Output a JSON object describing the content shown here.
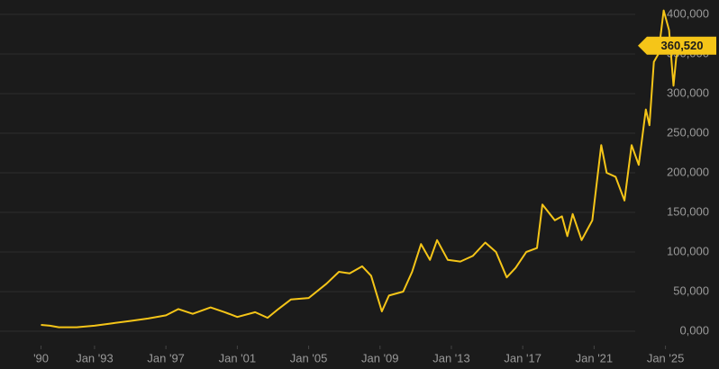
{
  "chart_data": {
    "type": "line",
    "color": "#f5c518",
    "grid": true,
    "xlim": [
      1987.7,
      2028
    ],
    "ylim": [
      -47700,
      418200
    ],
    "xticks": [
      {
        "value": 1990,
        "label": "'90"
      },
      {
        "value": 1993,
        "label": "Jan '93"
      },
      {
        "value": 1997,
        "label": "Jan '97"
      },
      {
        "value": 2001,
        "label": "Jan '01"
      },
      {
        "value": 2005,
        "label": "Jan '05"
      },
      {
        "value": 2009,
        "label": "Jan '09"
      },
      {
        "value": 2013,
        "label": "Jan '13"
      },
      {
        "value": 2017,
        "label": "Jan '17"
      },
      {
        "value": 2021,
        "label": "Jan '21"
      },
      {
        "value": 2025,
        "label": "Jan '25"
      }
    ],
    "yticks": [
      {
        "value": 0,
        "label": "0,000"
      },
      {
        "value": 50000,
        "label": "50,000"
      },
      {
        "value": 100000,
        "label": "100,000"
      },
      {
        "value": 150000,
        "label": "150,000"
      },
      {
        "value": 200000,
        "label": "200,000"
      },
      {
        "value": 250000,
        "label": "250,000"
      },
      {
        "value": 300000,
        "label": "300,000"
      },
      {
        "value": 350000,
        "label": "350,000"
      },
      {
        "value": 400000,
        "label": "400,000"
      }
    ],
    "x": [
      1990.0,
      1990.5,
      1991,
      1992,
      1993,
      1994,
      1995,
      1996,
      1997,
      1997.7,
      1998.5,
      1999.5,
      2000.3,
      2001,
      2002,
      2002.7,
      2003.3,
      2004,
      2005,
      2006,
      2006.7,
      2007.3,
      2008,
      2008.5,
      2009.1,
      2009.5,
      2010.3,
      2010.8,
      2011.3,
      2011.8,
      2012.2,
      2012.8,
      2013.5,
      2014.2,
      2014.9,
      2015.5,
      2016.1,
      2016.6,
      2017.2,
      2017.8,
      2018.1,
      2018.8,
      2019.2,
      2019.5,
      2019.8,
      2020.3,
      2020.9,
      2021.4,
      2021.7,
      2022.2,
      2022.7,
      2023.1,
      2023.5,
      2023.9,
      2024.1,
      2024.35,
      2024.6,
      2024.9,
      2025.2,
      2025.45,
      2025.6,
      2025.8
    ],
    "values": [
      8000,
      7000,
      5000,
      5000,
      7000,
      10000,
      13000,
      16000,
      20000,
      28000,
      22000,
      30000,
      24000,
      18000,
      24000,
      17000,
      28000,
      40000,
      42000,
      60000,
      75000,
      73000,
      82000,
      70000,
      25000,
      45000,
      50000,
      75000,
      110000,
      90000,
      115000,
      90000,
      88000,
      95000,
      112000,
      100000,
      68000,
      80000,
      100000,
      105000,
      160000,
      140000,
      145000,
      120000,
      148000,
      115000,
      140000,
      235000,
      200000,
      195000,
      165000,
      235000,
      210000,
      280000,
      260000,
      340000,
      350000,
      405000,
      380000,
      310000,
      345000,
      360520
    ],
    "current_value": {
      "value": 360520,
      "label": "360,520"
    }
  }
}
